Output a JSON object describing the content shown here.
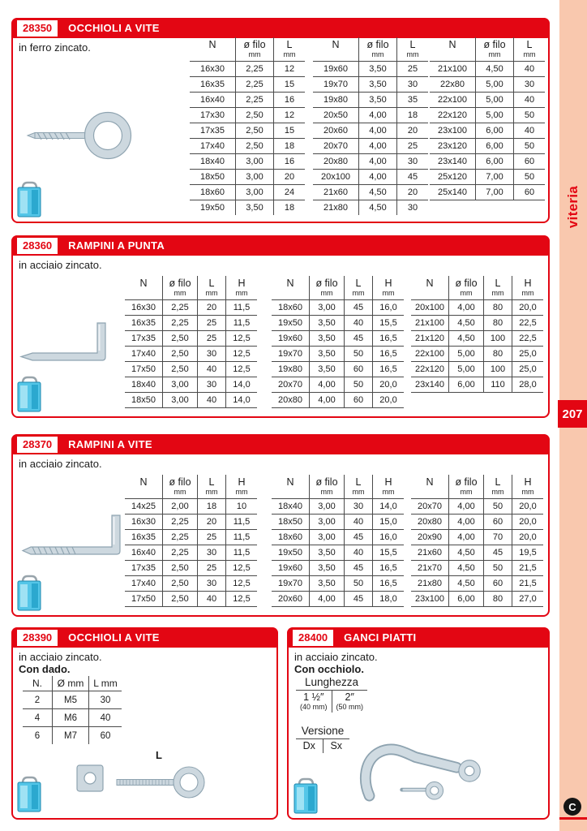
{
  "colors": {
    "accent_red": "#e30613",
    "sidebar_bg": "#f9c8ae",
    "package_blue": "#54c6e8"
  },
  "sidebar": {
    "tab": "viteria",
    "page_number": "207",
    "logo_letter": "C"
  },
  "s28350": {
    "code": "28350",
    "title": "OCCHIOLI A VITE",
    "subtitle": "in ferro zincato.",
    "tables": [
      {
        "headers": [
          {
            "label": "N",
            "sub": ""
          },
          {
            "label": "ø filo",
            "sub": "mm"
          },
          {
            "label": "L",
            "sub": "mm"
          }
        ],
        "rows": [
          [
            "16x30",
            "2,25",
            "12"
          ],
          [
            "16x35",
            "2,25",
            "15"
          ],
          [
            "16x40",
            "2,25",
            "16"
          ],
          [
            "17x30",
            "2,50",
            "12"
          ],
          [
            "17x35",
            "2,50",
            "15"
          ],
          [
            "17x40",
            "2,50",
            "18"
          ],
          [
            "18x40",
            "3,00",
            "16"
          ],
          [
            "18x50",
            "3,00",
            "20"
          ],
          [
            "18x60",
            "3,00",
            "24"
          ],
          [
            "19x50",
            "3,50",
            "18"
          ]
        ]
      },
      {
        "headers": [
          {
            "label": "N",
            "sub": ""
          },
          {
            "label": "ø filo",
            "sub": "mm"
          },
          {
            "label": "L",
            "sub": "mm"
          }
        ],
        "rows": [
          [
            "19x60",
            "3,50",
            "25"
          ],
          [
            "19x70",
            "3,50",
            "30"
          ],
          [
            "19x80",
            "3,50",
            "35"
          ],
          [
            "20x50",
            "4,00",
            "18"
          ],
          [
            "20x60",
            "4,00",
            "20"
          ],
          [
            "20x70",
            "4,00",
            "25"
          ],
          [
            "20x80",
            "4,00",
            "30"
          ],
          [
            "20x100",
            "4,00",
            "45"
          ],
          [
            "21x60",
            "4,50",
            "20"
          ],
          [
            "21x80",
            "4,50",
            "30"
          ]
        ]
      },
      {
        "headers": [
          {
            "label": "N",
            "sub": ""
          },
          {
            "label": "ø filo",
            "sub": "mm"
          },
          {
            "label": "L",
            "sub": "mm"
          }
        ],
        "rows": [
          [
            "21x100",
            "4,50",
            "40"
          ],
          [
            "22x80",
            "5,00",
            "30"
          ],
          [
            "22x100",
            "5,00",
            "40"
          ],
          [
            "22x120",
            "5,00",
            "50"
          ],
          [
            "23x100",
            "6,00",
            "40"
          ],
          [
            "23x120",
            "6,00",
            "50"
          ],
          [
            "23x140",
            "6,00",
            "60"
          ],
          [
            "25x120",
            "7,00",
            "50"
          ],
          [
            "25x140",
            "7,00",
            "60"
          ]
        ]
      }
    ]
  },
  "s28360": {
    "code": "28360",
    "title": "RAMPINI A PUNTA",
    "subtitle": "in acciaio zincato.",
    "tables": [
      {
        "headers": [
          {
            "label": "N",
            "sub": ""
          },
          {
            "label": "ø filo",
            "sub": "mm"
          },
          {
            "label": "L",
            "sub": "mm"
          },
          {
            "label": "H",
            "sub": "mm"
          }
        ],
        "rows": [
          [
            "16x30",
            "2,25",
            "20",
            "11,5"
          ],
          [
            "16x35",
            "2,25",
            "25",
            "11,5"
          ],
          [
            "17x35",
            "2,50",
            "25",
            "12,5"
          ],
          [
            "17x40",
            "2,50",
            "30",
            "12,5"
          ],
          [
            "17x50",
            "2,50",
            "40",
            "12,5"
          ],
          [
            "18x40",
            "3,00",
            "30",
            "14,0"
          ],
          [
            "18x50",
            "3,00",
            "40",
            "14,0"
          ]
        ]
      },
      {
        "headers": [
          {
            "label": "N",
            "sub": ""
          },
          {
            "label": "ø filo",
            "sub": "mm"
          },
          {
            "label": "L",
            "sub": "mm"
          },
          {
            "label": "H",
            "sub": "mm"
          }
        ],
        "rows": [
          [
            "18x60",
            "3,00",
            "45",
            "16,0"
          ],
          [
            "19x50",
            "3,50",
            "40",
            "15,5"
          ],
          [
            "19x60",
            "3,50",
            "45",
            "16,5"
          ],
          [
            "19x70",
            "3,50",
            "50",
            "16,5"
          ],
          [
            "19x80",
            "3,50",
            "60",
            "16,5"
          ],
          [
            "20x70",
            "4,00",
            "50",
            "20,0"
          ],
          [
            "20x80",
            "4,00",
            "60",
            "20,0"
          ]
        ]
      },
      {
        "headers": [
          {
            "label": "N",
            "sub": ""
          },
          {
            "label": "ø filo",
            "sub": "mm"
          },
          {
            "label": "L",
            "sub": "mm"
          },
          {
            "label": "H",
            "sub": "mm"
          }
        ],
        "rows": [
          [
            "20x100",
            "4,00",
            "80",
            "20,0"
          ],
          [
            "21x100",
            "4,50",
            "80",
            "22,5"
          ],
          [
            "21x120",
            "4,50",
            "100",
            "22,5"
          ],
          [
            "22x100",
            "5,00",
            "80",
            "25,0"
          ],
          [
            "22x120",
            "5,00",
            "100",
            "25,0"
          ],
          [
            "23x140",
            "6,00",
            "110",
            "28,0"
          ]
        ]
      }
    ]
  },
  "s28370": {
    "code": "28370",
    "title": "RAMPINI A VITE",
    "subtitle": "in acciaio zincato.",
    "tables": [
      {
        "headers": [
          {
            "label": "N",
            "sub": ""
          },
          {
            "label": "ø filo",
            "sub": "mm"
          },
          {
            "label": "L",
            "sub": "mm"
          },
          {
            "label": "H",
            "sub": "mm"
          }
        ],
        "rows": [
          [
            "14x25",
            "2,00",
            "18",
            "10"
          ],
          [
            "16x30",
            "2,25",
            "20",
            "11,5"
          ],
          [
            "16x35",
            "2,25",
            "25",
            "11,5"
          ],
          [
            "16x40",
            "2,25",
            "30",
            "11,5"
          ],
          [
            "17x35",
            "2,50",
            "25",
            "12,5"
          ],
          [
            "17x40",
            "2,50",
            "30",
            "12,5"
          ],
          [
            "17x50",
            "2,50",
            "40",
            "12,5"
          ]
        ]
      },
      {
        "headers": [
          {
            "label": "N",
            "sub": ""
          },
          {
            "label": "ø filo",
            "sub": "mm"
          },
          {
            "label": "L",
            "sub": "mm"
          },
          {
            "label": "H",
            "sub": "mm"
          }
        ],
        "rows": [
          [
            "18x40",
            "3,00",
            "30",
            "14,0"
          ],
          [
            "18x50",
            "3,00",
            "40",
            "15,0"
          ],
          [
            "18x60",
            "3,00",
            "45",
            "16,0"
          ],
          [
            "19x50",
            "3,50",
            "40",
            "15,5"
          ],
          [
            "19x60",
            "3,50",
            "45",
            "16,5"
          ],
          [
            "19x70",
            "3,50",
            "50",
            "16,5"
          ],
          [
            "20x60",
            "4,00",
            "45",
            "18,0"
          ]
        ]
      },
      {
        "headers": [
          {
            "label": "N",
            "sub": ""
          },
          {
            "label": "ø filo",
            "sub": "mm"
          },
          {
            "label": "L",
            "sub": "mm"
          },
          {
            "label": "H",
            "sub": "mm"
          }
        ],
        "rows": [
          [
            "20x70",
            "4,00",
            "50",
            "20,0"
          ],
          [
            "20x80",
            "4,00",
            "60",
            "20,0"
          ],
          [
            "20x90",
            "4,00",
            "70",
            "20,0"
          ],
          [
            "21x60",
            "4,50",
            "45",
            "19,5"
          ],
          [
            "21x70",
            "4,50",
            "50",
            "21,5"
          ],
          [
            "21x80",
            "4,50",
            "60",
            "21,5"
          ],
          [
            "23x100",
            "6,00",
            "80",
            "27,0"
          ]
        ]
      }
    ]
  },
  "s28390": {
    "code": "28390",
    "title": "OCCHIOLI A VITE",
    "subtitle": "in acciaio zincato.",
    "subtitle2": "Con dado.",
    "illustration_label": "L",
    "table": {
      "headers": [
        {
          "label": "N.",
          "sub": ""
        },
        {
          "label": "Ø mm",
          "sub": ""
        },
        {
          "label": "L mm",
          "sub": ""
        }
      ],
      "rows": [
        [
          "2",
          "M5",
          "30"
        ],
        [
          "4",
          "M6",
          "40"
        ],
        [
          "6",
          "M7",
          "60"
        ]
      ]
    }
  },
  "s28400": {
    "code": "28400",
    "title": "GANCI PIATTI",
    "subtitle": "in acciaio zincato.",
    "subtitle2": "Con occhiolo.",
    "lunghezza": {
      "title": "Lunghezza",
      "headers": [
        {
          "label": "1 ½″",
          "sub": "(40 mm)"
        },
        {
          "label": "2″",
          "sub": "(50 mm)"
        }
      ]
    },
    "versione": {
      "title": "Versione",
      "headers": [
        {
          "label": "Dx",
          "sub": ""
        },
        {
          "label": "Sx",
          "sub": ""
        }
      ]
    }
  }
}
